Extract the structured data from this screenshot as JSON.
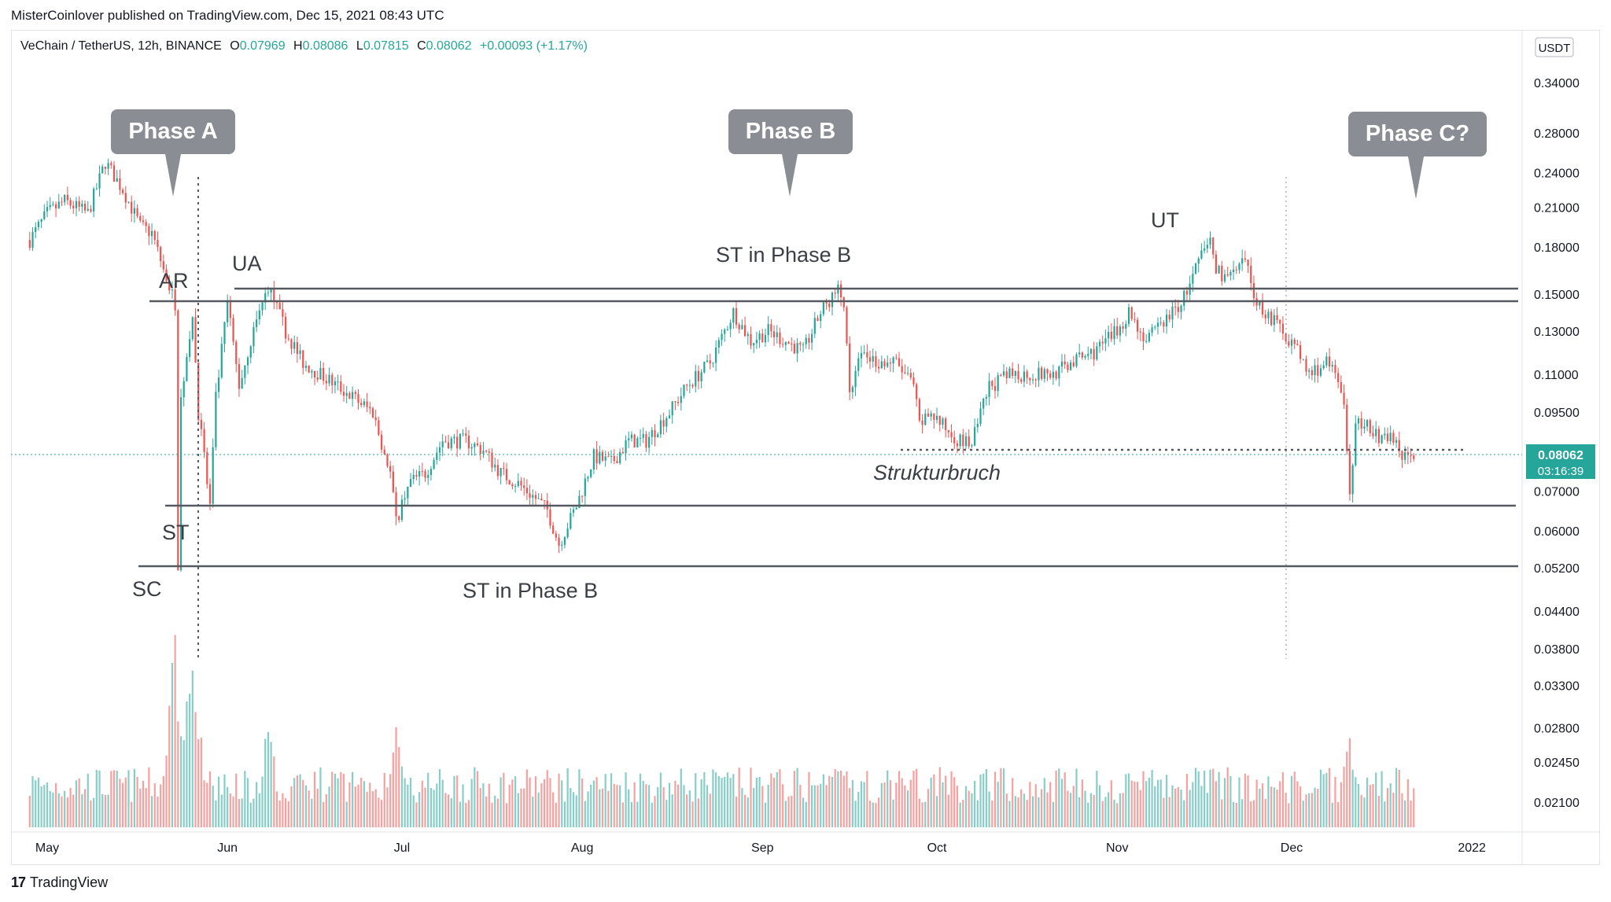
{
  "header": {
    "publisher_line": "MisterCoinlover published on TradingView.com, Dec 15, 2021 08:43 UTC"
  },
  "legend": {
    "symbol": "VeChain / TetherUS, 12h, BINANCE",
    "open_label": "O",
    "open": "0.07969",
    "high_label": "H",
    "high": "0.08086",
    "low_label": "L",
    "low": "0.07815",
    "close_label": "C",
    "close": "0.08062",
    "change": "+0.00093 (+1.17%)"
  },
  "price_axis": {
    "currency_badge": "USDT",
    "ticks": [
      "0.34000",
      "0.28000",
      "0.24000",
      "0.21000",
      "0.18000",
      "0.15000",
      "0.13000",
      "0.11000",
      "0.09500",
      "0.07000",
      "0.06000",
      "0.05200",
      "0.04400",
      "0.03800",
      "0.03300",
      "0.02800",
      "0.02450",
      "0.02100"
    ],
    "last_price": "0.08062",
    "countdown": "03:16:39"
  },
  "time_axis": {
    "ticks": [
      "May",
      "Jun",
      "Jul",
      "Aug",
      "Sep",
      "Oct",
      "Nov",
      "Dec",
      "2022"
    ]
  },
  "annotations": {
    "phase_a": "Phase A",
    "phase_b": "Phase B",
    "phase_c": "Phase C?",
    "ar": "AR",
    "ua": "UA",
    "st_low": "ST",
    "sc": "SC",
    "st_phase_b_top": "ST in Phase B",
    "st_phase_b_bottom": "ST in Phase B",
    "ut": "UT",
    "strukturbruch": "Strukturbruch"
  },
  "footer": {
    "brand": "TradingView"
  },
  "colors": {
    "up": "#26a69a",
    "down": "#ef5350",
    "callout": "#8a8d93",
    "level_line": "#555a60",
    "last_price_bg": "#26a69a"
  },
  "chart_data": {
    "type": "candlestick",
    "title": "VeChain / TetherUS, 12h, BINANCE",
    "x_range": [
      "2021-04-28",
      "2022-01-05"
    ],
    "y_scale": "log",
    "ylim": [
      0.0175,
      0.42
    ],
    "horizontal_levels": [
      0.154,
      0.147,
      0.0655,
      0.0525,
      0.0835
    ],
    "path": [
      [
        "2021-04-28",
        0.185
      ],
      [
        "2021-05-01",
        0.205
      ],
      [
        "2021-05-04",
        0.215
      ],
      [
        "2021-05-08",
        0.205
      ],
      [
        "2021-05-11",
        0.25
      ],
      [
        "2021-05-14",
        0.225
      ],
      [
        "2021-05-17",
        0.195
      ],
      [
        "2021-05-19",
        0.19
      ],
      [
        "2021-05-21",
        0.165
      ],
      [
        "2021-05-23",
        0.145
      ],
      [
        "2021-05-23T12",
        0.053
      ],
      [
        "2021-05-24",
        0.1
      ],
      [
        "2021-05-26",
        0.14
      ],
      [
        "2021-05-27",
        0.095
      ],
      [
        "2021-05-29",
        0.066
      ],
      [
        "2021-05-30",
        0.1
      ],
      [
        "2021-06-01",
        0.145
      ],
      [
        "2021-06-03",
        0.105
      ],
      [
        "2021-06-05",
        0.125
      ],
      [
        "2021-06-08",
        0.155
      ],
      [
        "2021-06-11",
        0.13
      ],
      [
        "2021-06-14",
        0.115
      ],
      [
        "2021-06-17",
        0.11
      ],
      [
        "2021-06-20",
        0.105
      ],
      [
        "2021-06-23",
        0.1
      ],
      [
        "2021-06-26",
        0.095
      ],
      [
        "2021-06-29",
        0.075
      ],
      [
        "2021-06-30",
        0.062
      ],
      [
        "2021-07-02",
        0.072
      ],
      [
        "2021-07-05",
        0.075
      ],
      [
        "2021-07-08",
        0.085
      ],
      [
        "2021-07-12",
        0.085
      ],
      [
        "2021-07-15",
        0.082
      ],
      [
        "2021-07-18",
        0.075
      ],
      [
        "2021-07-21",
        0.072
      ],
      [
        "2021-07-24",
        0.068
      ],
      [
        "2021-07-26",
        0.065
      ],
      [
        "2021-07-28",
        0.057
      ],
      [
        "2021-07-31",
        0.066
      ],
      [
        "2021-08-03",
        0.08
      ],
      [
        "2021-08-06",
        0.078
      ],
      [
        "2021-08-09",
        0.085
      ],
      [
        "2021-08-12",
        0.085
      ],
      [
        "2021-08-16",
        0.095
      ],
      [
        "2021-08-19",
        0.105
      ],
      [
        "2021-08-23",
        0.115
      ],
      [
        "2021-08-27",
        0.14
      ],
      [
        "2021-08-30",
        0.125
      ],
      [
        "2021-09-02",
        0.13
      ],
      [
        "2021-09-05",
        0.125
      ],
      [
        "2021-09-08",
        0.12
      ],
      [
        "2021-09-11",
        0.14
      ],
      [
        "2021-09-13",
        0.148
      ],
      [
        "2021-09-14",
        0.152
      ],
      [
        "2021-09-15",
        0.145
      ],
      [
        "2021-09-16",
        0.1
      ],
      [
        "2021-09-18",
        0.12
      ],
      [
        "2021-09-21",
        0.115
      ],
      [
        "2021-09-24",
        0.115
      ],
      [
        "2021-09-27",
        0.105
      ],
      [
        "2021-09-28",
        0.09
      ],
      [
        "2021-09-30",
        0.095
      ],
      [
        "2021-10-02",
        0.09
      ],
      [
        "2021-10-05",
        0.085
      ],
      [
        "2021-10-07",
        0.084
      ],
      [
        "2021-10-10",
        0.105
      ],
      [
        "2021-10-14",
        0.11
      ],
      [
        "2021-10-18",
        0.11
      ],
      [
        "2021-10-21",
        0.11
      ],
      [
        "2021-10-24",
        0.115
      ],
      [
        "2021-10-28",
        0.12
      ],
      [
        "2021-11-01",
        0.13
      ],
      [
        "2021-11-03",
        0.14
      ],
      [
        "2021-11-06",
        0.125
      ],
      [
        "2021-11-09",
        0.135
      ],
      [
        "2021-11-12",
        0.145
      ],
      [
        "2021-11-14",
        0.16
      ],
      [
        "2021-11-15",
        0.17
      ],
      [
        "2021-11-17",
        0.185
      ],
      [
        "2021-11-18",
        0.165
      ],
      [
        "2021-11-20",
        0.16
      ],
      [
        "2021-11-22",
        0.165
      ],
      [
        "2021-11-23",
        0.17
      ],
      [
        "2021-11-25",
        0.145
      ],
      [
        "2021-11-28",
        0.135
      ],
      [
        "2021-12-01",
        0.125
      ],
      [
        "2021-12-04",
        0.11
      ],
      [
        "2021-12-07",
        0.115
      ],
      [
        "2021-12-09",
        0.108
      ],
      [
        "2021-12-10",
        0.095
      ],
      [
        "2021-12-11",
        0.07
      ],
      [
        "2021-12-12",
        0.09
      ],
      [
        "2021-12-14",
        0.092
      ],
      [
        "2021-12-16",
        0.085
      ],
      [
        "2021-12-18",
        0.087
      ],
      [
        "2021-12-20",
        0.08
      ],
      [
        "2021-12-21",
        0.079
      ],
      [
        "2021-12-22",
        0.0806
      ]
    ],
    "volume_spikes": [
      [
        "2021-05-23",
        1.0
      ],
      [
        "2021-05-26",
        0.95
      ],
      [
        "2021-06-08",
        0.55
      ],
      [
        "2021-06-30",
        0.5
      ],
      [
        "2021-09-14",
        0.45
      ],
      [
        "2021-12-11",
        0.5
      ]
    ]
  }
}
